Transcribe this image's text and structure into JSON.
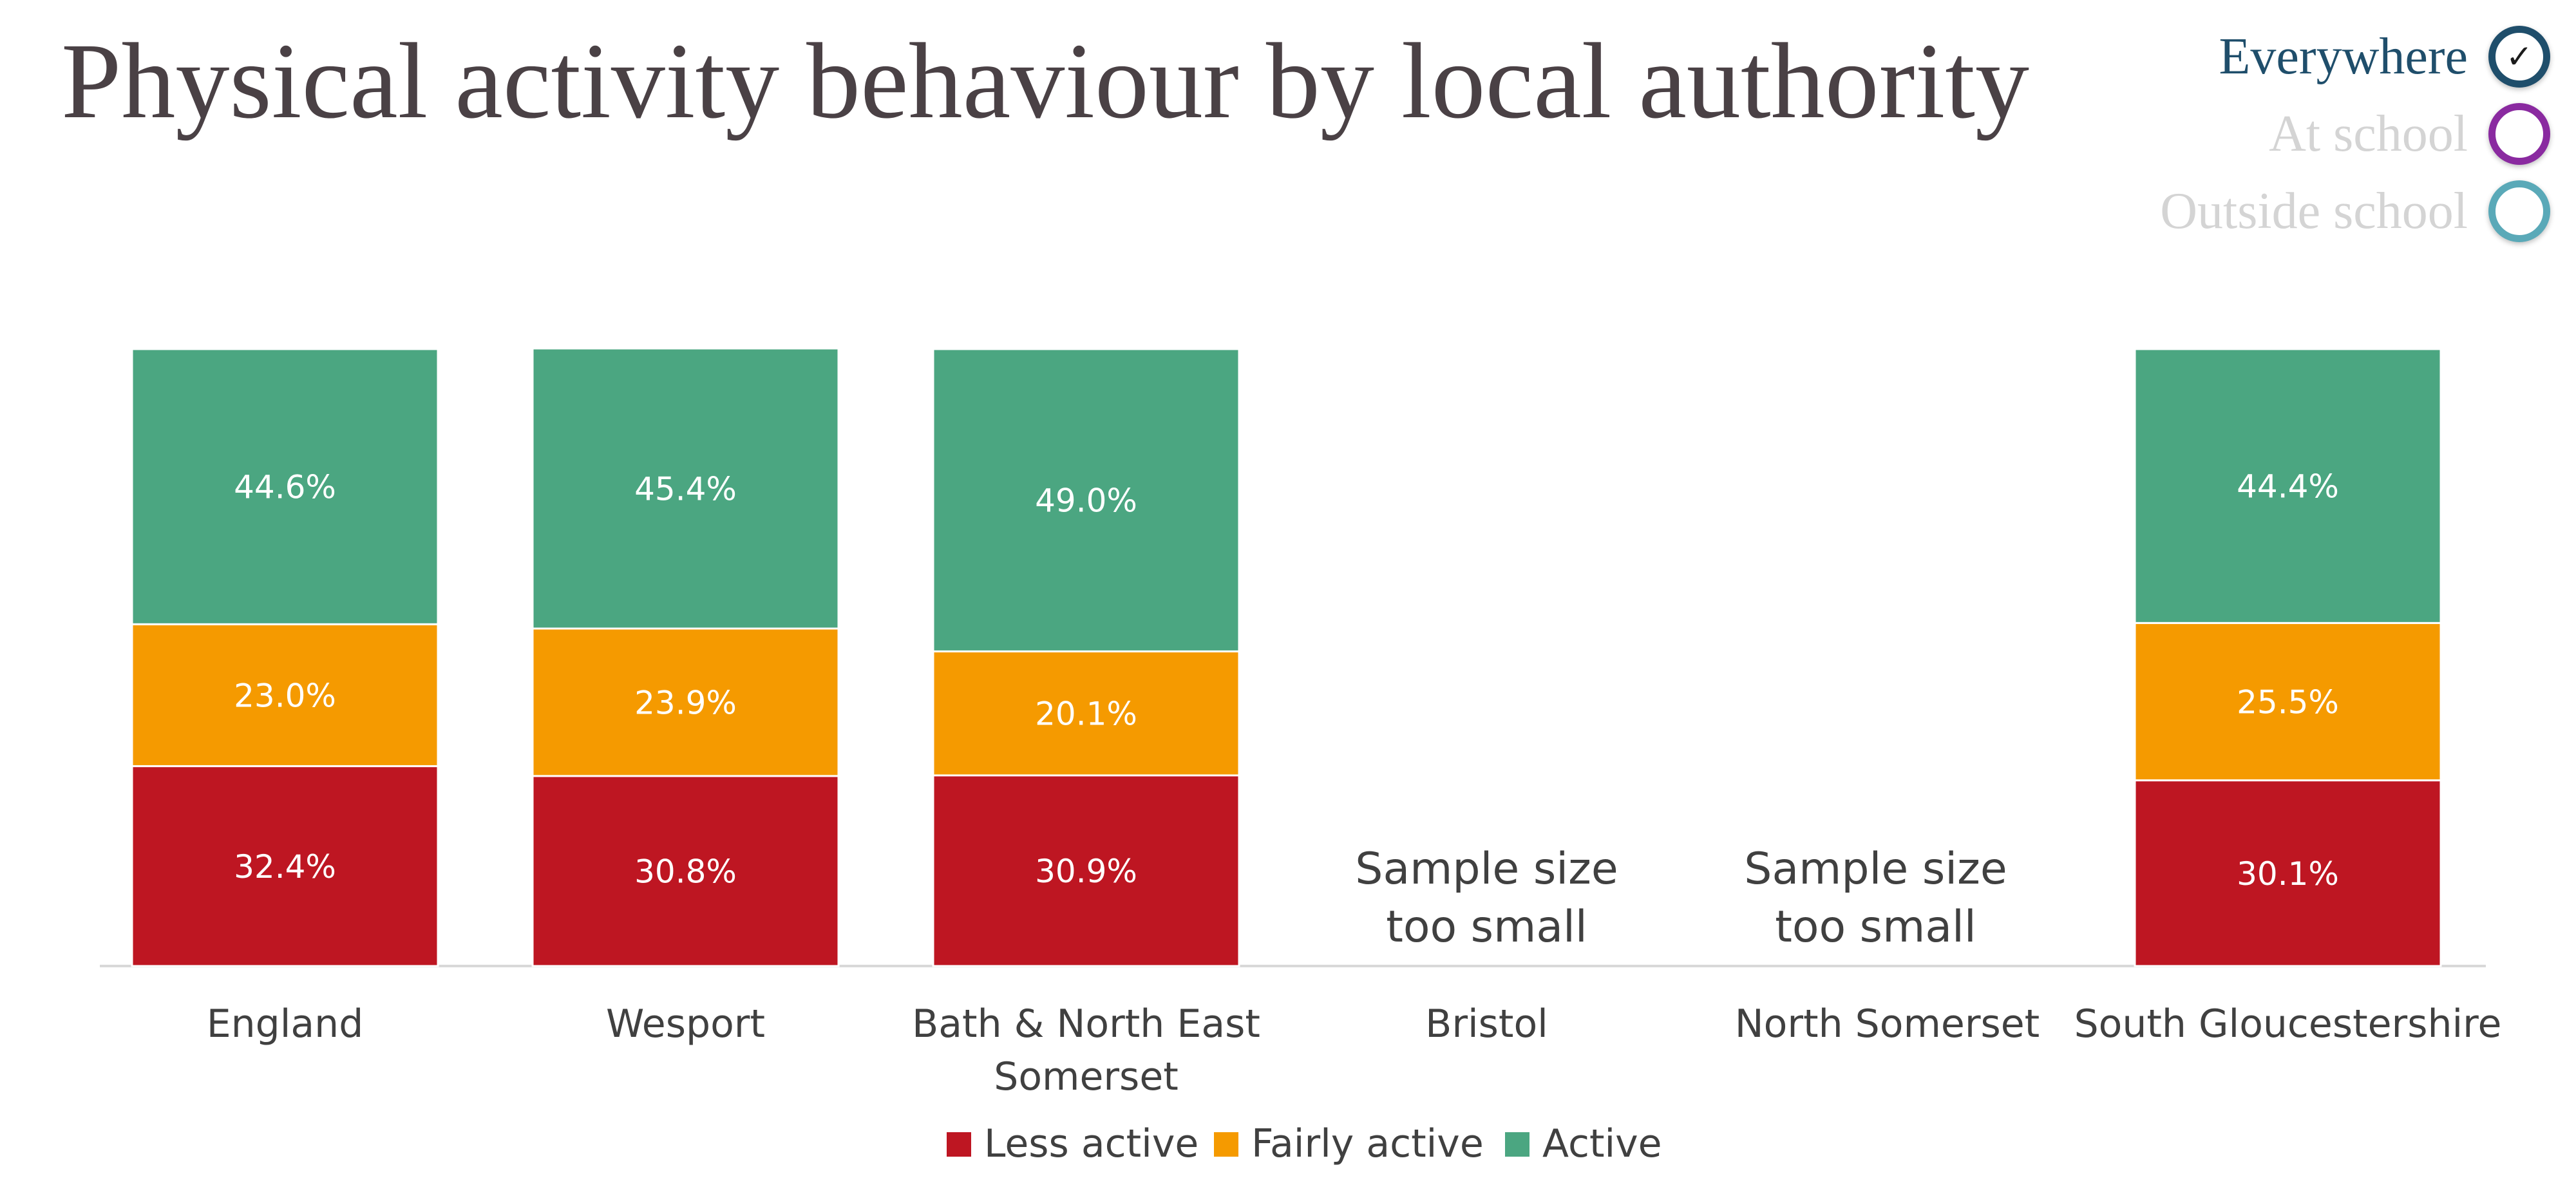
{
  "title": "Physical activity behaviour by local authority",
  "filters": {
    "items": [
      {
        "label": "Everywhere",
        "selected": true,
        "color": "#1f4e6b",
        "label_color": "#1f4e6b",
        "check": "✓"
      },
      {
        "label": "At school",
        "selected": false,
        "color": "#8a2aa0",
        "label_color": "#d4d4d4",
        "check": ""
      },
      {
        "label": "Outside school",
        "selected": false,
        "color": "#5aa9b8",
        "label_color": "#d4d4d4",
        "check": ""
      }
    ]
  },
  "colors": {
    "less_active": "#be1622",
    "fairly_active": "#f59a00",
    "active": "#4ba681",
    "axis_line": "#d9d9d9",
    "tick_text": "#404040",
    "bar_label": "#ffffff"
  },
  "chart_data": {
    "type": "bar",
    "stacked": true,
    "orientation": "vertical",
    "categories": [
      "England",
      "Wesport",
      "Bath & North East Somerset",
      "Bristol",
      "North Somerset",
      "South Gloucestershire"
    ],
    "category_label_lines": [
      [
        "England"
      ],
      [
        "Wesport"
      ],
      [
        "Bath & North East",
        "Somerset"
      ],
      [
        "Bristol"
      ],
      [
        "North Somerset"
      ],
      [
        "South Gloucestershire"
      ]
    ],
    "series": [
      {
        "name": "Less active",
        "color_key": "less_active",
        "values": [
          32.4,
          30.8,
          30.9,
          null,
          null,
          30.1
        ]
      },
      {
        "name": "Fairly active",
        "color_key": "fairly_active",
        "values": [
          23.0,
          23.9,
          20.1,
          null,
          null,
          25.5
        ]
      },
      {
        "name": "Active",
        "color_key": "active",
        "values": [
          44.6,
          45.4,
          49.0,
          null,
          null,
          44.4
        ]
      }
    ],
    "data_labels": [
      [
        "32.4%",
        "30.8%",
        "30.9%",
        "",
        "",
        "30.1%"
      ],
      [
        "23.0%",
        "23.9%",
        "20.1%",
        "",
        "",
        "25.5%"
      ],
      [
        "44.6%",
        "45.4%",
        "49.0%",
        "",
        "",
        "44.4%"
      ]
    ],
    "annotations": [
      {
        "category": "Bristol",
        "lines": [
          "Sample size",
          "too small"
        ]
      },
      {
        "category": "North Somerset",
        "lines": [
          "Sample size",
          "too small"
        ]
      }
    ],
    "ylim": [
      0,
      100
    ],
    "grid": false,
    "legend_position": "bottom-center"
  }
}
